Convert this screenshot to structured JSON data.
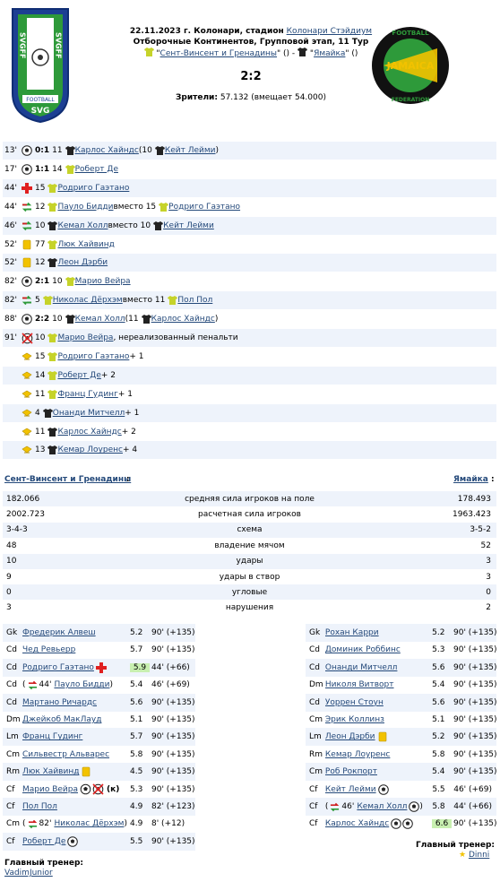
{
  "header": {
    "date_place": "22.11.2023 г. Колонари, стадион",
    "stadium": "Колонари Стэйдиум",
    "tournament": "Отборочные Континентов, Групповой этап, 11 Тур",
    "home_team": "Сент-Винсент и Гренадины",
    "away_team": "Ямайка",
    "score": "2:2",
    "spectators_label": "Зрители:",
    "spectators_value": "57.132 (вмещает 54.000)",
    "home_logo_text_top": "SVGFF",
    "home_logo_text_bottom": "SVG",
    "home_logo_band": "FOOTBALL",
    "away_logo_text": "JAMAICA",
    "away_logo_ring_top": "FOOTBALL",
    "away_logo_ring_bottom": "FEDERATION"
  },
  "colors": {
    "link": "#24497a",
    "row_alt": "#eef3fb",
    "highlight": "#c8efb0",
    "home_shirt": "#c6d32a",
    "away_shirt": "#222222"
  },
  "events": [
    {
      "min": "13'",
      "icon": "ball",
      "score": "0:1",
      "parts": [
        {
          "t": "11"
        },
        {
          "shirt": "away"
        },
        {
          "link": "Карлос Хайндс"
        },
        {
          "t": "(10"
        },
        {
          "shirt": "away"
        },
        {
          "link": "Кейт Лейми"
        },
        {
          "t": ")"
        }
      ]
    },
    {
      "min": "17'",
      "icon": "ball",
      "score": "1:1",
      "parts": [
        {
          "t": "14"
        },
        {
          "shirt": "home"
        },
        {
          "link": "Роберт Де"
        }
      ]
    },
    {
      "min": "44'",
      "icon": "cross",
      "parts": [
        {
          "t": "15"
        },
        {
          "shirt": "home"
        },
        {
          "link": "Родриго Гаэтано"
        }
      ]
    },
    {
      "min": "44'",
      "icon": "sub",
      "parts": [
        {
          "t": "12"
        },
        {
          "shirt": "home"
        },
        {
          "link": "Пауло Бидди"
        },
        {
          "t": "вместо 15"
        },
        {
          "shirt": "home"
        },
        {
          "link": "Родриго Гаэтано"
        }
      ]
    },
    {
      "min": "46'",
      "icon": "sub",
      "parts": [
        {
          "t": "10"
        },
        {
          "shirt": "away"
        },
        {
          "link": "Кемал Холл"
        },
        {
          "t": "вместо 10"
        },
        {
          "shirt": "away"
        },
        {
          "link": "Кейт Лейми"
        }
      ]
    },
    {
      "min": "52'",
      "icon": "yellow",
      "parts": [
        {
          "t": "77"
        },
        {
          "shirt": "home"
        },
        {
          "link": "Люк Хайвинд"
        }
      ]
    },
    {
      "min": "52'",
      "icon": "yellow",
      "parts": [
        {
          "t": "12"
        },
        {
          "shirt": "away"
        },
        {
          "link": "Леон Дэрби"
        }
      ]
    },
    {
      "min": "82'",
      "icon": "ball",
      "score": "2:1",
      "parts": [
        {
          "t": "10"
        },
        {
          "shirt": "home"
        },
        {
          "link": "Марио Вейра"
        }
      ]
    },
    {
      "min": "82'",
      "icon": "sub",
      "parts": [
        {
          "t": "5"
        },
        {
          "shirt": "home"
        },
        {
          "link": "Николас Дёрхэм"
        },
        {
          "t": "вместо 11"
        },
        {
          "shirt": "home"
        },
        {
          "link": "Пол Пол"
        }
      ]
    },
    {
      "min": "88'",
      "icon": "ball",
      "score": "2:2",
      "parts": [
        {
          "t": "10"
        },
        {
          "shirt": "away"
        },
        {
          "link": "Кемал Холл"
        },
        {
          "t": "(11"
        },
        {
          "shirt": "away"
        },
        {
          "link": "Карлос Хайндс"
        },
        {
          "t": ")"
        }
      ]
    },
    {
      "min": "91'",
      "icon": "missed",
      "parts": [
        {
          "t": "10"
        },
        {
          "shirt": "home"
        },
        {
          "link": "Марио Вейра"
        },
        {
          "t": ", нереализованный пенальти"
        }
      ]
    },
    {
      "min": "",
      "icon": "star",
      "parts": [
        {
          "t": "15"
        },
        {
          "shirt": "home"
        },
        {
          "link": "Родриго Гаэтано"
        },
        {
          "t": "+ 1"
        }
      ]
    },
    {
      "min": "",
      "icon": "star",
      "parts": [
        {
          "t": "14"
        },
        {
          "shirt": "home"
        },
        {
          "link": "Роберт Де"
        },
        {
          "t": "+ 2"
        }
      ]
    },
    {
      "min": "",
      "icon": "star",
      "parts": [
        {
          "t": "11"
        },
        {
          "shirt": "home"
        },
        {
          "link": "Франц Гудинг"
        },
        {
          "t": "+ 1"
        }
      ]
    },
    {
      "min": "",
      "icon": "star",
      "parts": [
        {
          "t": "4"
        },
        {
          "shirt": "away"
        },
        {
          "link": "Онанди Митчелл"
        },
        {
          "t": "+ 1"
        }
      ]
    },
    {
      "min": "",
      "icon": "star",
      "parts": [
        {
          "t": "11"
        },
        {
          "shirt": "away"
        },
        {
          "link": "Карлос Хайндс"
        },
        {
          "t": "+ 2"
        }
      ]
    },
    {
      "min": "",
      "icon": "star",
      "parts": [
        {
          "t": "13"
        },
        {
          "shirt": "away"
        },
        {
          "link": "Кемар Лоуренс"
        },
        {
          "t": "+ 4"
        }
      ]
    }
  ],
  "stats": {
    "home_label": "Сент-Винсент и Гренадины",
    "away_label": "Ямайка",
    "rows": [
      {
        "l": "182.066",
        "m": "средняя сила игроков на поле",
        "r": "178.493"
      },
      {
        "l": "2002.723",
        "m": "расчетная сила игроков",
        "r": "1963.423"
      },
      {
        "l": "3-4-3",
        "m": "схема",
        "r": "3-5-2"
      },
      {
        "l": "48",
        "m": "владение мячом",
        "r": "52"
      },
      {
        "l": "10",
        "m": "удары",
        "r": "3"
      },
      {
        "l": "9",
        "m": "удары в створ",
        "r": "3"
      },
      {
        "l": "0",
        "m": "угловые",
        "r": "0"
      },
      {
        "l": "3",
        "m": "нарушения",
        "r": "2"
      }
    ]
  },
  "home_players": [
    {
      "pos": "Gk",
      "name": "Фредерик Алвеш",
      "rating": "5.2",
      "min": "90' (+135)"
    },
    {
      "pos": "Cd",
      "name": "Чед Ревьерр",
      "rating": "5.7",
      "min": "90' (+135)"
    },
    {
      "pos": "Cd",
      "name": "Родриго Гаэтано",
      "icon_after": "cross",
      "rating": "5.9",
      "hl": true,
      "min": "44' (+66)"
    },
    {
      "pos": "Cd",
      "pre": "( ",
      "sub_min": "44'",
      "name": "Пауло Бидди",
      "post": " )",
      "rating": "5.4",
      "min": "46' (+69)"
    },
    {
      "pos": "Cd",
      "name": "Мартано Ричардс",
      "rating": "5.6",
      "min": "90' (+135)"
    },
    {
      "pos": "Dm",
      "name": "Джейкоб МакЛауд",
      "rating": "5.1",
      "min": "90' (+135)"
    },
    {
      "pos": "Lm",
      "name": "Франц Гудинг",
      "rating": "5.7",
      "min": "90' (+135)"
    },
    {
      "pos": "Cm",
      "name": "Сильвестр Альварес",
      "rating": "5.8",
      "min": "90' (+135)"
    },
    {
      "pos": "Rm",
      "name": "Люк Хайвинд",
      "icon_after": "yellow",
      "rating": "4.5",
      "min": "90' (+135)"
    },
    {
      "pos": "Cf",
      "name": "Марио Вейра",
      "icon_after": "ballmiss",
      "captain": "(к)",
      "rating": "5.3",
      "min": "90' (+135)"
    },
    {
      "pos": "Cf",
      "name": "Пол Пол",
      "rating": "4.9",
      "min": "82' (+123)"
    },
    {
      "pos": "Cm",
      "pre": "( ",
      "sub_min": "82'",
      "name": "Николас Дёрхэм",
      "post": " )",
      "rating": "4.9",
      "min": "8' (+12)"
    },
    {
      "pos": "Cf",
      "name": "Роберт Де",
      "icon_after": "ball",
      "rating": "5.5",
      "min": "90' (+135)"
    }
  ],
  "away_players": [
    {
      "pos": "Gk",
      "name": "Рохан Карри",
      "rating": "5.2",
      "min": "90' (+135)"
    },
    {
      "pos": "Cd",
      "name": "Доминик Роббинс",
      "rating": "5.3",
      "min": "90' (+135)"
    },
    {
      "pos": "Cd",
      "name": "Онанди Митчелл",
      "rating": "5.6",
      "min": "90' (+135)"
    },
    {
      "pos": "Dm",
      "name": "Николя Витворт",
      "rating": "5.4",
      "min": "90' (+135)"
    },
    {
      "pos": "Cd",
      "name": "Уоррен Стоун",
      "rating": "5.6",
      "min": "90' (+135)"
    },
    {
      "pos": "Cm",
      "name": "Эрик Коллинз",
      "rating": "5.1",
      "min": "90' (+135)"
    },
    {
      "pos": "Lm",
      "name": "Леон Дэрби",
      "icon_after": "yellow",
      "rating": "5.2",
      "min": "90' (+135)"
    },
    {
      "pos": "Rm",
      "name": "Кемар Лоуренс",
      "rating": "5.8",
      "min": "90' (+135)"
    },
    {
      "pos": "Cm",
      "name": "Роб Рокпорт",
      "rating": "5.4",
      "min": "90' (+135)"
    },
    {
      "pos": "Cf",
      "name": "Кейт Лейми",
      "icon_after": "ball",
      "rating": "5.5",
      "min": "46' (+69)"
    },
    {
      "pos": "Cf",
      "pre": "( ",
      "sub_min": "46'",
      "name": "Кемал Холл",
      "icon_after": "ball",
      "post": " )",
      "rating": "5.8",
      "min": "44' (+66)"
    },
    {
      "pos": "Cf",
      "name": "Карлос Хайндс",
      "icon_after": "ball2",
      "rating": "6.6",
      "hl": true,
      "min": "90' (+135)"
    }
  ],
  "coaches": {
    "label": "Главный тренер:",
    "home": "VadimJunior",
    "away": "Dinni"
  }
}
